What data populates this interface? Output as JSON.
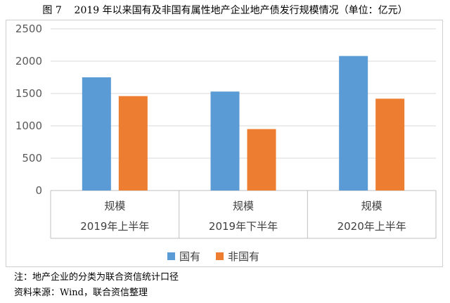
{
  "caption": "图 7    2019 年以来国有及非国有属性地产企业地产债发行规模情况（单位：亿元）",
  "notes": {
    "note": "注：地产企业的分类为联合资信统计口径",
    "source": "资料来源：Wind，联合资信整理"
  },
  "chart_data": {
    "type": "bar",
    "title": "",
    "xlabel": "",
    "ylabel": "",
    "ylim": [
      0,
      2500
    ],
    "yticks": [
      0,
      500,
      1000,
      1500,
      2000,
      2500
    ],
    "grid": true,
    "legend_position": "bottom",
    "categories": [
      [
        "规模",
        "2019年上半年"
      ],
      [
        "规模",
        "2019年下半年"
      ],
      [
        "规模",
        "2020年上半年"
      ]
    ],
    "series": [
      {
        "name": "国有",
        "color": "#5b9bd5",
        "values": [
          1750,
          1530,
          2080
        ]
      },
      {
        "name": "非国有",
        "color": "#ed7d31",
        "values": [
          1460,
          950,
          1420
        ]
      }
    ]
  }
}
